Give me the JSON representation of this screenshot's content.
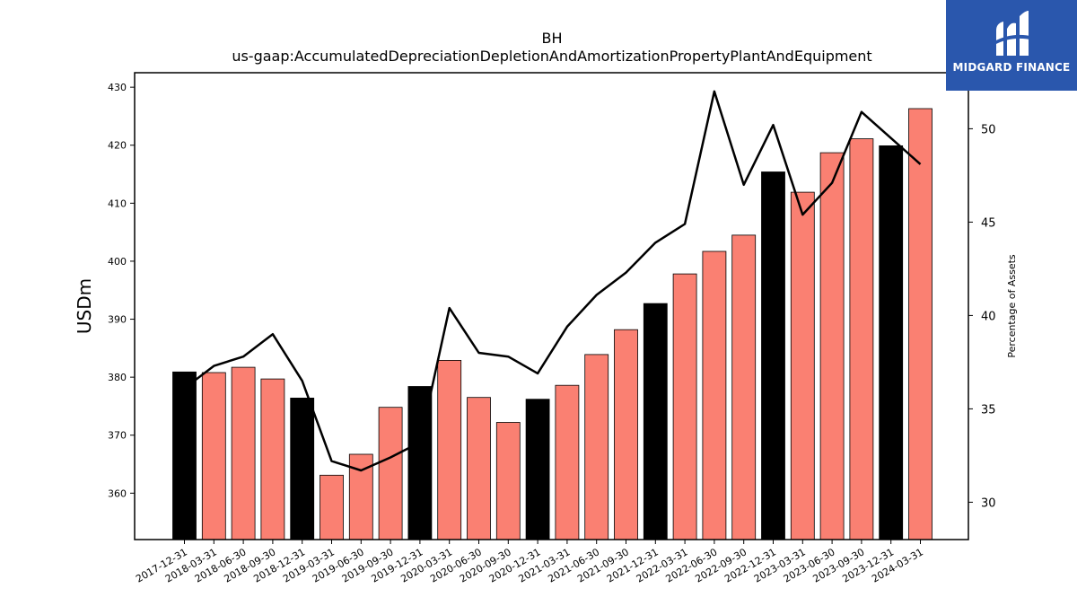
{
  "brand": {
    "name": "MIDGARD FINANCE",
    "logo_icon": "midgard-logo-icon",
    "background": "#2a57ad"
  },
  "chart_data": {
    "type": "bar",
    "title": "BH",
    "subtitle": "us-gaap:AccumulatedDepreciationDepletionAndAmortizationPropertyPlantAndEquipment",
    "ylabel": "USDm",
    "y2label": "Percentage of Assets",
    "ylim": [
      352,
      432.5
    ],
    "y2lim": [
      28,
      53
    ],
    "yticks": [
      360,
      370,
      380,
      390,
      400,
      410,
      420,
      430
    ],
    "y2ticks": [
      30,
      35,
      40,
      45,
      50
    ],
    "categories": [
      "2017-12-31",
      "2018-03-31",
      "2018-06-30",
      "2018-09-30",
      "2018-12-31",
      "2019-03-31",
      "2019-06-30",
      "2019-09-30",
      "2019-12-31",
      "2020-03-31",
      "2020-06-30",
      "2020-09-30",
      "2020-12-31",
      "2021-03-31",
      "2021-06-30",
      "2021-09-30",
      "2021-12-31",
      "2022-03-31",
      "2022-06-30",
      "2022-09-30",
      "2022-12-31",
      "2023-03-31",
      "2023-06-30",
      "2023-09-30",
      "2023-12-31",
      "2024-03-31"
    ],
    "values": [
      380.9,
      380.8,
      381.7,
      379.7,
      376.4,
      363.1,
      366.7,
      374.8,
      378.4,
      382.9,
      376.5,
      372.2,
      376.2,
      378.6,
      383.9,
      388.2,
      392.7,
      397.8,
      401.7,
      404.5,
      415.4,
      411.9,
      418.7,
      421.1,
      419.9,
      426.3
    ],
    "bar_colors": [
      "#000000",
      "#fa8072",
      "#fa8072",
      "#fa8072",
      "#000000",
      "#fa8072",
      "#fa8072",
      "#fa8072",
      "#000000",
      "#fa8072",
      "#fa8072",
      "#fa8072",
      "#000000",
      "#fa8072",
      "#fa8072",
      "#fa8072",
      "#000000",
      "#fa8072",
      "#fa8072",
      "#fa8072",
      "#000000",
      "#fa8072",
      "#fa8072",
      "#fa8072",
      "#000000",
      "#fa8072"
    ],
    "line_series": {
      "values": [
        36.1,
        37.3,
        37.8,
        39.0,
        36.5,
        32.2,
        31.7,
        32.4,
        33.2,
        40.4,
        38.0,
        37.8,
        36.9,
        39.4,
        41.1,
        42.3,
        43.9,
        44.9,
        52.0,
        47.0,
        50.2,
        45.4,
        47.1,
        50.9,
        49.5,
        48.1
      ],
      "color": "#000000"
    },
    "grid": false
  }
}
